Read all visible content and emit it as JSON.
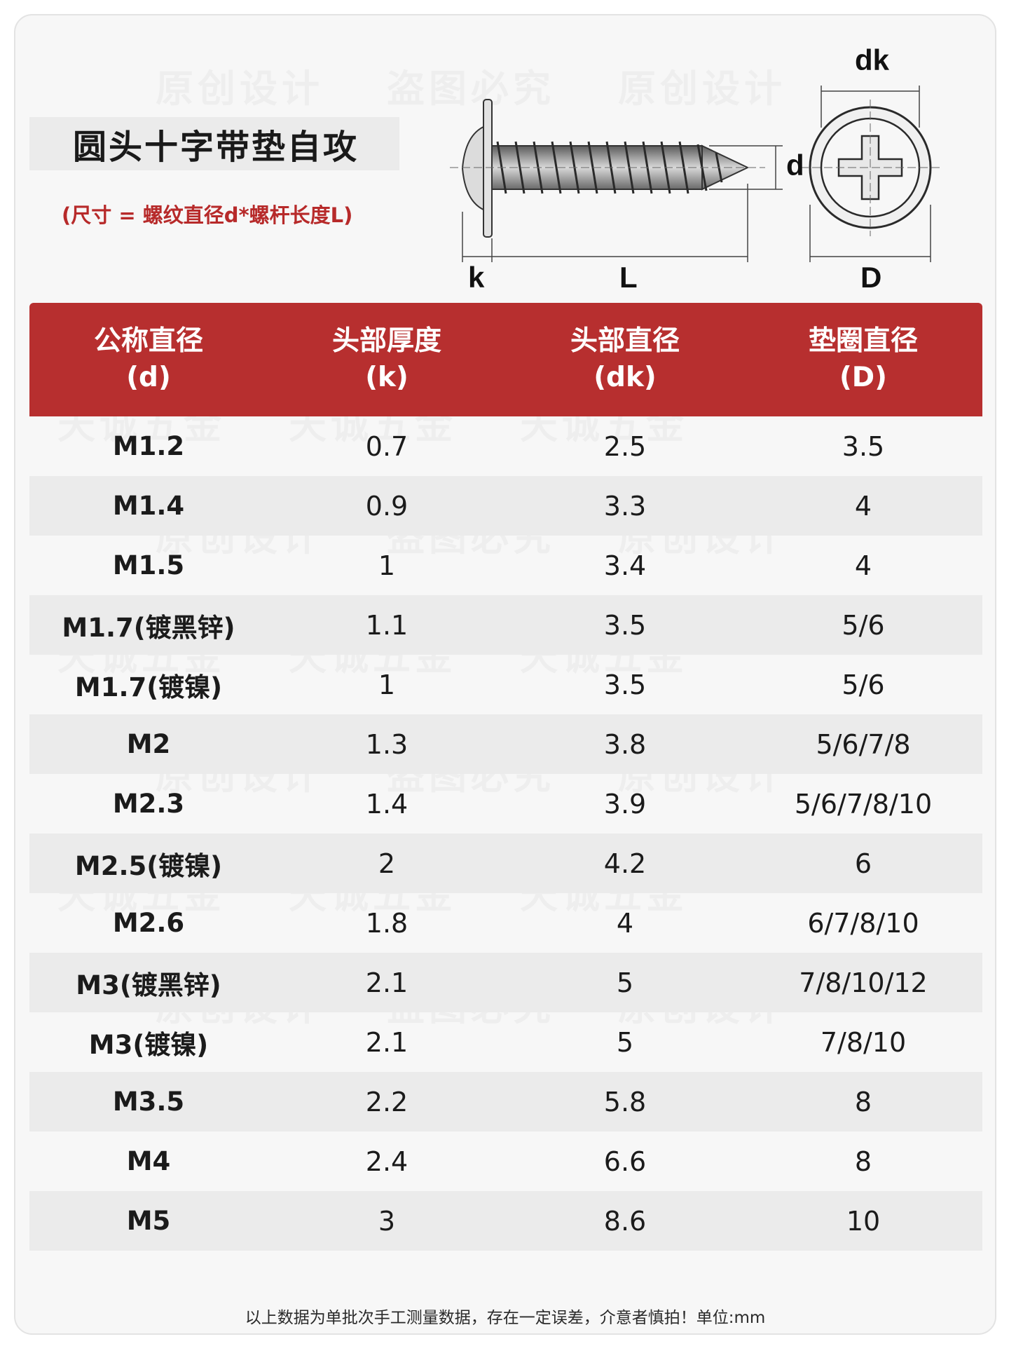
{
  "title": "圆头十字带垫自攻",
  "subtitle": "(尺寸 = 螺纹直径d*螺杆长度L)",
  "diagram": {
    "labels": {
      "dk": "dk",
      "d": "d",
      "k": "k",
      "L": "L",
      "D": "D"
    }
  },
  "table": {
    "headers": [
      {
        "name": "公称直径",
        "symbol": "(d)"
      },
      {
        "name": "头部厚度",
        "symbol": "(k)"
      },
      {
        "name": "头部直径",
        "symbol": "(dk)"
      },
      {
        "name": "垫圈直径",
        "symbol": "(D)"
      }
    ],
    "rows": [
      [
        "M1.2",
        "0.7",
        "2.5",
        "3.5"
      ],
      [
        "M1.4",
        "0.9",
        "3.3",
        "4"
      ],
      [
        "M1.5",
        "1",
        "3.4",
        "4"
      ],
      [
        "M1.7(镀黑锌)",
        "1.1",
        "3.5",
        "5/6"
      ],
      [
        "M1.7(镀镍)",
        "1",
        "3.5",
        "5/6"
      ],
      [
        "M2",
        "1.3",
        "3.8",
        "5/6/7/8"
      ],
      [
        "M2.3",
        "1.4",
        "3.9",
        "5/6/7/8/10"
      ],
      [
        "M2.5(镀镍)",
        "2",
        "4.2",
        "6"
      ],
      [
        "M2.6",
        "1.8",
        "4",
        "6/7/8/10"
      ],
      [
        "M3(镀黑锌)",
        "2.1",
        "5",
        "7/8/10/12"
      ],
      [
        "M3(镀镍)",
        "2.1",
        "5",
        "7/8/10"
      ],
      [
        "M3.5",
        "2.2",
        "5.8",
        "8"
      ],
      [
        "M4",
        "2.4",
        "6.6",
        "8"
      ],
      [
        "M5",
        "3",
        "8.6",
        "10"
      ]
    ]
  },
  "watermarks": [
    "原创设计",
    "盗图必究",
    "天诚五金"
  ],
  "footer": "以上数据为单批次手工测量数据，存在一定误差，介意者慎拍！单位:mm",
  "colors": {
    "header_bg": "#b72f2f",
    "accent_text": "#b72a2a",
    "stripe": "#ebebeb"
  }
}
